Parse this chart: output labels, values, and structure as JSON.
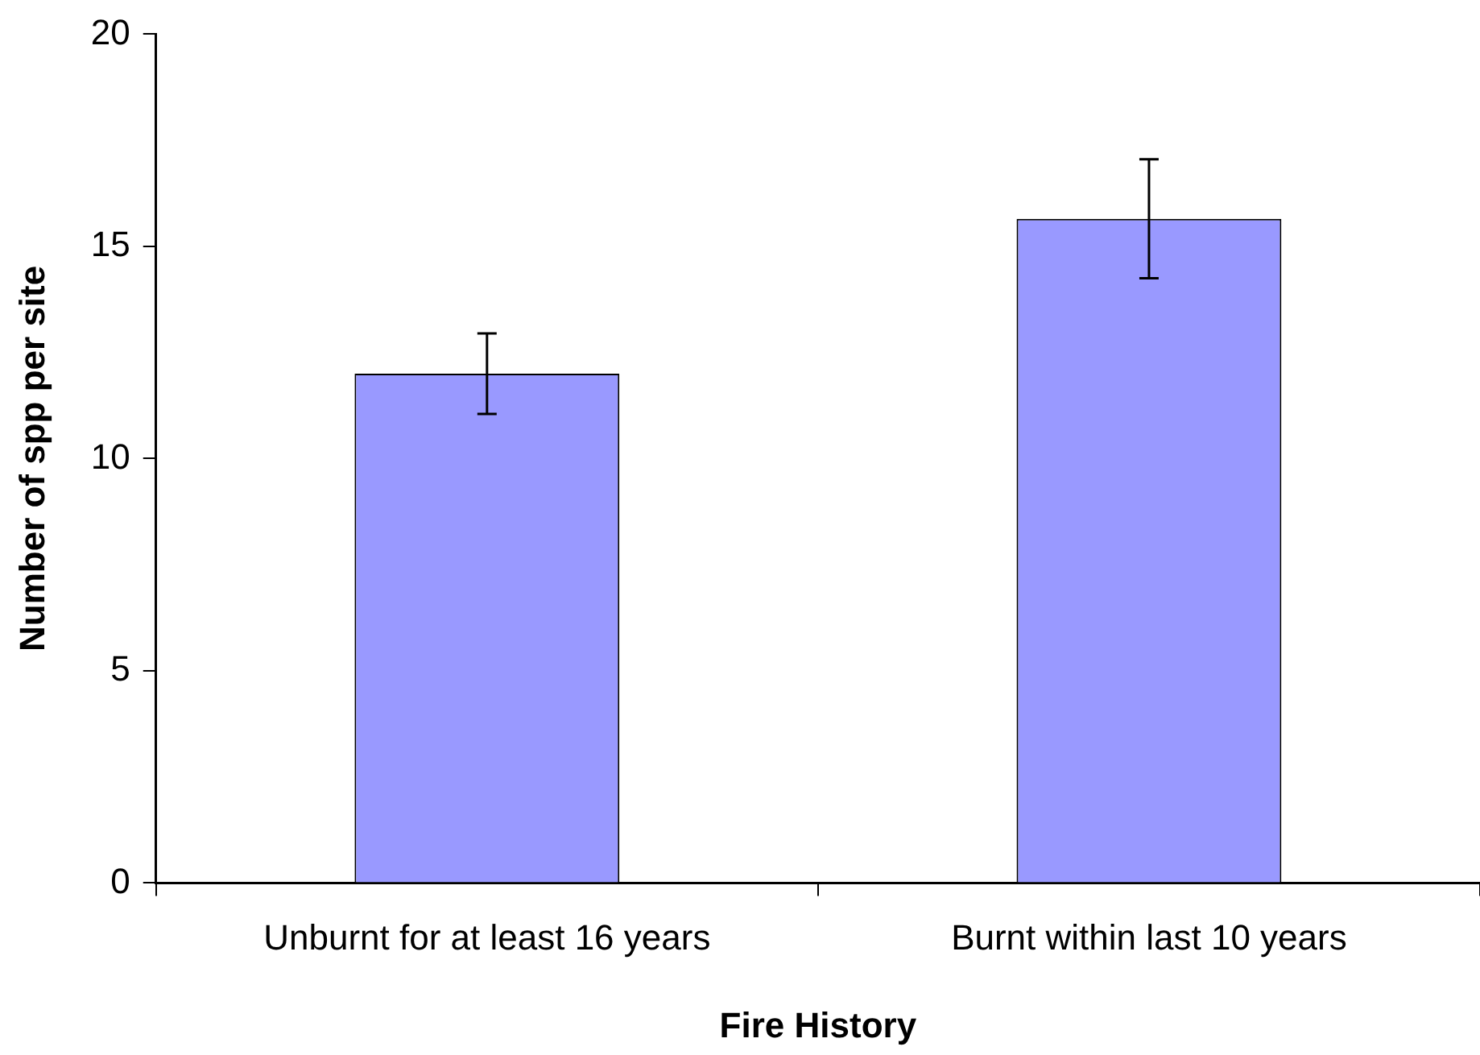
{
  "chart_data": {
    "type": "bar",
    "xlabel": "Fire History",
    "ylabel": "Number of spp per site",
    "categories": [
      "Unburnt for at least 16 years",
      "Burnt within last 10 years"
    ],
    "values": [
      12.0,
      15.65
    ],
    "errors": [
      0.95,
      1.4
    ],
    "color": "#9999ff",
    "ylim": [
      0,
      20
    ],
    "yticks": [
      0,
      5,
      10,
      15,
      20
    ],
    "grid": false,
    "legend": false
  }
}
